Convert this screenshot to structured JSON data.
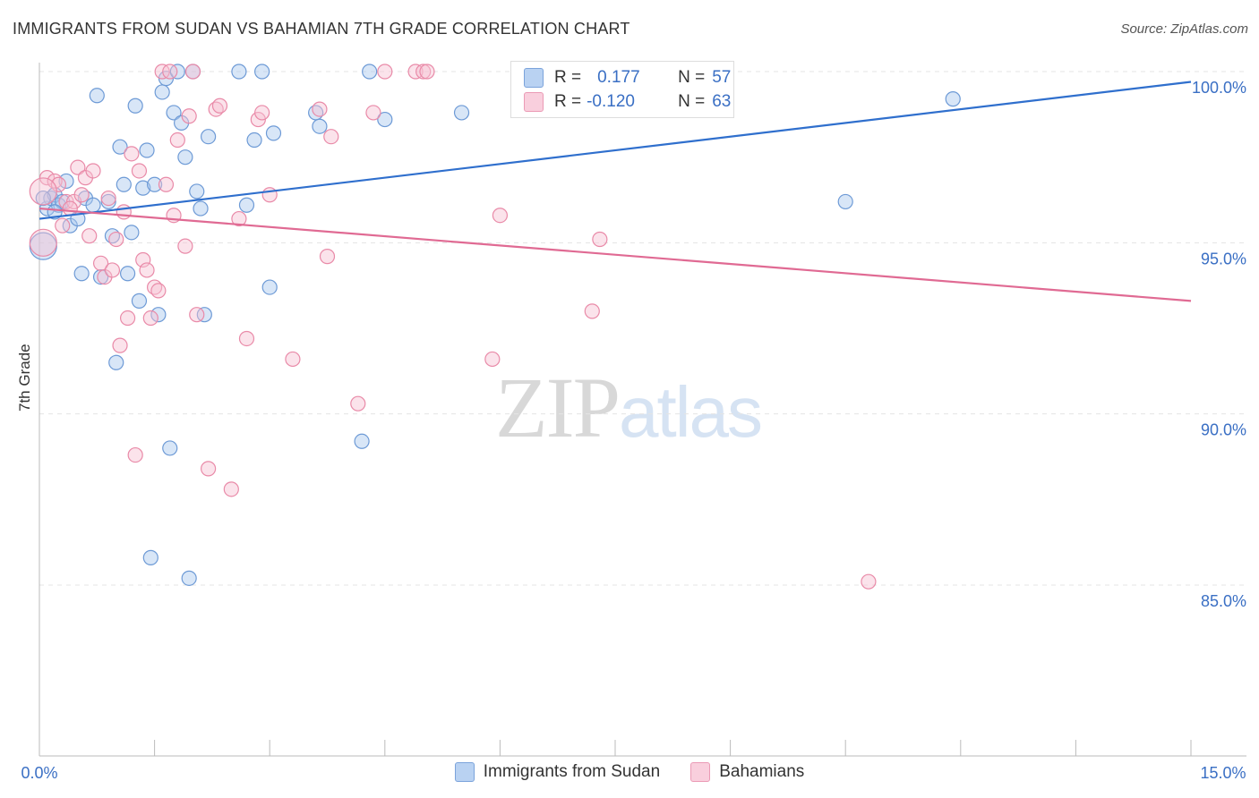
{
  "title": "IMMIGRANTS FROM SUDAN VS BAHAMIAN 7TH GRADE CORRELATION CHART",
  "source": "Source: ZipAtlas.com",
  "watermark": {
    "zip": "ZIP",
    "atlas": "atlas"
  },
  "legend": {
    "rows": [
      {
        "r_label": "R =",
        "r_value": "0.177",
        "n_label": "N =",
        "n_value": "57"
      },
      {
        "r_label": "R =",
        "r_value": "-0.120",
        "n_label": "N =",
        "n_value": "63"
      }
    ]
  },
  "chart_data": {
    "type": "scatter",
    "title": "IMMIGRANTS FROM SUDAN VS BAHAMIAN 7TH GRADE CORRELATION CHART",
    "xlabel": "",
    "ylabel": "7th Grade",
    "xlim": [
      0.0,
      15.0
    ],
    "ylim": [
      80.0,
      101.0
    ],
    "x_ticks_labels": [
      "0.0%",
      "15.0%"
    ],
    "y_ticks": [
      85.0,
      90.0,
      95.0,
      100.0
    ],
    "y_ticks_labels": [
      "85.0%",
      "90.0%",
      "95.0%",
      "100.0%"
    ],
    "grid": "horizontal dashed",
    "legend_position": "bottom",
    "series": [
      {
        "name": "Immigrants from Sudan",
        "color": "#a9c7ee",
        "stroke": "#6d9ad6",
        "line_color": "#2f6fcd",
        "trend": [
          [
            0.0,
            95.7
          ],
          [
            15.0,
            99.7
          ]
        ],
        "points": [
          [
            0.1,
            96.0
          ],
          [
            0.15,
            96.3
          ],
          [
            0.2,
            96.4
          ],
          [
            0.25,
            96.1
          ],
          [
            0.3,
            96.2
          ],
          [
            0.35,
            96.8
          ],
          [
            0.4,
            95.5
          ],
          [
            0.5,
            95.7
          ],
          [
            0.55,
            94.1
          ],
          [
            0.6,
            96.3
          ],
          [
            0.7,
            96.1
          ],
          [
            0.75,
            99.3
          ],
          [
            0.8,
            94.0
          ],
          [
            0.9,
            96.2
          ],
          [
            0.95,
            95.2
          ],
          [
            1.0,
            91.5
          ],
          [
            1.05,
            97.8
          ],
          [
            1.1,
            96.7
          ],
          [
            1.15,
            94.1
          ],
          [
            1.2,
            95.3
          ],
          [
            1.25,
            99.0
          ],
          [
            1.3,
            93.3
          ],
          [
            1.35,
            96.6
          ],
          [
            1.4,
            97.7
          ],
          [
            1.45,
            85.8
          ],
          [
            1.5,
            96.7
          ],
          [
            1.55,
            92.9
          ],
          [
            1.6,
            99.4
          ],
          [
            1.65,
            99.8
          ],
          [
            1.7,
            89.0
          ],
          [
            1.75,
            98.8
          ],
          [
            1.8,
            100.0
          ],
          [
            1.85,
            98.5
          ],
          [
            1.9,
            97.5
          ],
          [
            1.95,
            85.2
          ],
          [
            2.0,
            100.0
          ],
          [
            2.05,
            96.5
          ],
          [
            2.1,
            96.0
          ],
          [
            2.15,
            92.9
          ],
          [
            2.2,
            98.1
          ],
          [
            2.6,
            100.0
          ],
          [
            2.7,
            96.1
          ],
          [
            2.8,
            98.0
          ],
          [
            2.9,
            100.0
          ],
          [
            3.0,
            93.7
          ],
          [
            3.05,
            98.2
          ],
          [
            3.6,
            98.8
          ],
          [
            3.65,
            98.4
          ],
          [
            4.2,
            89.2
          ],
          [
            4.3,
            100.0
          ],
          [
            4.5,
            98.6
          ],
          [
            5.5,
            98.8
          ],
          [
            10.5,
            96.2
          ],
          [
            11.9,
            99.2
          ],
          [
            0.05,
            94.9
          ],
          [
            0.05,
            96.3
          ],
          [
            0.2,
            95.9
          ]
        ]
      },
      {
        "name": "Bahamians",
        "color": "#f7c0d2",
        "stroke": "#e98aa8",
        "line_color": "#e06a93",
        "trend": [
          [
            0.0,
            96.0
          ],
          [
            15.0,
            93.3
          ]
        ],
        "points": [
          [
            0.05,
            95.0
          ],
          [
            0.1,
            96.9
          ],
          [
            0.2,
            96.8
          ],
          [
            0.25,
            96.7
          ],
          [
            0.3,
            95.5
          ],
          [
            0.35,
            96.2
          ],
          [
            0.45,
            96.2
          ],
          [
            0.5,
            97.2
          ],
          [
            0.55,
            96.4
          ],
          [
            0.6,
            96.9
          ],
          [
            0.65,
            95.2
          ],
          [
            0.7,
            97.1
          ],
          [
            0.8,
            94.4
          ],
          [
            0.85,
            94.0
          ],
          [
            0.9,
            96.3
          ],
          [
            0.95,
            94.2
          ],
          [
            1.0,
            95.1
          ],
          [
            1.05,
            92.0
          ],
          [
            1.1,
            95.9
          ],
          [
            1.15,
            92.8
          ],
          [
            1.2,
            97.6
          ],
          [
            1.25,
            88.8
          ],
          [
            1.3,
            97.1
          ],
          [
            1.35,
            94.5
          ],
          [
            1.4,
            94.2
          ],
          [
            1.45,
            92.8
          ],
          [
            1.5,
            93.7
          ],
          [
            1.55,
            93.6
          ],
          [
            1.6,
            100.0
          ],
          [
            1.65,
            96.7
          ],
          [
            1.7,
            100.0
          ],
          [
            1.75,
            95.8
          ],
          [
            1.8,
            98.0
          ],
          [
            1.9,
            94.9
          ],
          [
            1.95,
            98.7
          ],
          [
            2.0,
            100.0
          ],
          [
            2.05,
            92.9
          ],
          [
            2.2,
            88.4
          ],
          [
            2.3,
            98.9
          ],
          [
            2.35,
            99.0
          ],
          [
            2.5,
            87.8
          ],
          [
            2.6,
            95.7
          ],
          [
            2.7,
            92.2
          ],
          [
            2.85,
            98.6
          ],
          [
            2.9,
            98.8
          ],
          [
            3.0,
            96.4
          ],
          [
            3.3,
            91.6
          ],
          [
            3.65,
            98.9
          ],
          [
            3.75,
            94.6
          ],
          [
            3.8,
            98.1
          ],
          [
            4.15,
            90.3
          ],
          [
            4.35,
            98.8
          ],
          [
            4.5,
            100.0
          ],
          [
            4.9,
            100.0
          ],
          [
            5.0,
            100.0
          ],
          [
            5.05,
            100.0
          ],
          [
            5.9,
            91.6
          ],
          [
            6.0,
            95.8
          ],
          [
            7.2,
            93.0
          ],
          [
            7.3,
            95.1
          ],
          [
            10.8,
            85.1
          ],
          [
            0.05,
            96.5
          ],
          [
            0.4,
            96.0
          ]
        ]
      }
    ]
  }
}
